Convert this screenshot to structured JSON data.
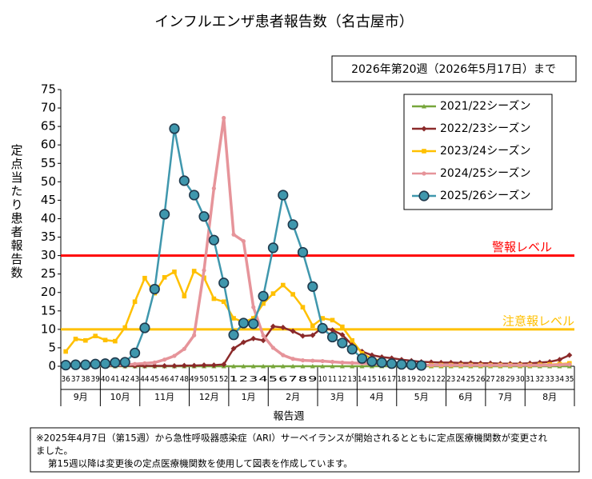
{
  "chart_data": {
    "type": "line",
    "title": "インフルエンザ患者報告数（名古屋市）",
    "subtitle": "2026年第20週（2026年5月17日）まで",
    "ylabel": "定点当たり患者報告数",
    "xlabel": "報告週",
    "note": [
      "※2025年4月7日（第15週）から急性呼吸器感染症（ARI）サーベイランスが開始されるとともに定点医療機関数が変更され",
      "ました。",
      "第15週以降は変更後の定点医療機関数を使用して図表を作成しています。"
    ],
    "categories": [
      "36",
      "37",
      "38",
      "39",
      "40",
      "41",
      "42",
      "43",
      "44",
      "45",
      "46",
      "47",
      "48",
      "49",
      "50",
      "51",
      "52",
      "1",
      "2",
      "3",
      "4",
      "5",
      "6",
      "7",
      "8",
      "9",
      "10",
      "11",
      "12",
      "13",
      "14",
      "15",
      "16",
      "17",
      "18",
      "19",
      "20",
      "21",
      "22",
      "23",
      "24",
      "25",
      "26",
      "27",
      "28",
      "29",
      "30",
      "31",
      "32",
      "33",
      "34",
      "35"
    ],
    "category_months": [
      "9月",
      "9月",
      "9月",
      "9月",
      "10月",
      "10月",
      "10月",
      "10月",
      "11月",
      "11月",
      "11月",
      "11月",
      "11月",
      "12月",
      "12月",
      "12月",
      "12月",
      "1月",
      "1月",
      "1月",
      "1月",
      "2月",
      "2月",
      "2月",
      "2月",
      "2月",
      "3月",
      "3月",
      "3月",
      "3月",
      "4月",
      "4月",
      "4月",
      "4月",
      "5月",
      "5月",
      "5月",
      "5月",
      "5月",
      "6月",
      "6月",
      "6月",
      "6月",
      "7月",
      "7月",
      "7月",
      "7月",
      "8月",
      "8月",
      "8月",
      "8月",
      "8月"
    ],
    "ylim": [
      0,
      75
    ],
    "yticks": [
      0,
      5,
      10,
      15,
      20,
      25,
      30,
      35,
      40,
      45,
      50,
      55,
      60,
      65,
      70,
      75
    ],
    "legend": "upper right",
    "reference_lines": [
      {
        "label": "警報レベル",
        "value": 30,
        "color": "#ff0000"
      },
      {
        "label": "注意報レベル",
        "value": 10,
        "color": "#ffc000"
      }
    ],
    "series": [
      {
        "name": "2021/22シーズン",
        "color": "#77a63b",
        "marker": "triangle",
        "values": [
          0,
          0,
          0,
          0,
          0,
          0,
          0,
          0,
          0,
          0,
          0,
          0,
          0,
          0,
          0,
          0,
          0,
          0,
          0,
          0,
          0,
          0,
          0,
          0,
          0,
          0,
          0,
          0,
          0,
          0,
          0,
          0,
          0,
          0,
          0,
          0,
          0,
          0,
          0,
          0,
          0,
          0,
          0,
          0,
          0,
          0,
          0,
          0,
          0,
          0,
          0,
          0
        ]
      },
      {
        "name": "2022/23シーズン",
        "color": "#8b2a2a",
        "marker": "diamond",
        "values": [
          0.1,
          0.1,
          0.1,
          0.1,
          0.1,
          0.1,
          0.1,
          0.1,
          0.1,
          0.1,
          0.1,
          0.1,
          0.2,
          0.2,
          0.3,
          0.3,
          0.5,
          4.8,
          6.5,
          7.5,
          7.0,
          10.8,
          10.5,
          9.5,
          8.2,
          8.4,
          10.5,
          9.8,
          8.5,
          5.8,
          4.0,
          3.0,
          2.5,
          2.2,
          1.8,
          1.5,
          1.2,
          1.1,
          1.0,
          1.0,
          0.9,
          0.9,
          0.8,
          0.8,
          0.7,
          0.7,
          0.7,
          0.8,
          1.0,
          1.2,
          1.8,
          3.0
        ]
      },
      {
        "name": "2023/24シーズン",
        "color": "#ffc000",
        "marker": "square",
        "values": [
          4.0,
          7.4,
          7.0,
          8.2,
          7.1,
          6.8,
          10.5,
          17.5,
          23.9,
          19.8,
          24.1,
          25.6,
          19.0,
          25.8,
          24.0,
          18.3,
          17.5,
          13.0,
          12.0,
          13.0,
          17.0,
          19.7,
          22.0,
          19.5,
          16.0,
          11.0,
          13.0,
          12.5,
          10.7,
          7.0,
          3.5,
          2.0,
          1.5,
          1.0,
          0.8,
          0.5,
          0.4,
          0.3,
          0.3,
          0.3,
          0.3,
          0.3,
          0.3,
          0.3,
          0.3,
          0.3,
          0.3,
          0.3,
          0.4,
          0.5,
          0.6,
          0.8
        ]
      },
      {
        "name": "2024/25シーズン",
        "color": "#e6949a",
        "marker": "circle",
        "values": [
          0.1,
          0.1,
          0.2,
          0.2,
          0.3,
          0.3,
          0.4,
          0.6,
          0.8,
          1.0,
          1.8,
          2.8,
          4.7,
          8.4,
          26.0,
          48.2,
          67.3,
          35.7,
          33.9,
          16.0,
          8.3,
          5.0,
          3.0,
          2.0,
          1.6,
          1.5,
          1.4,
          1.2,
          1.0,
          0.9,
          0.8,
          0.6,
          0.5,
          0.5,
          0.4,
          0.3,
          0.3,
          0.3,
          0.3,
          0.3,
          0.3,
          0.3,
          0.3,
          0.3,
          0.3,
          0.3,
          0.3,
          0.3,
          0.3,
          0.3,
          0.4,
          0.5
        ]
      },
      {
        "name": "2025/26シーズン",
        "color": "#3f97ad",
        "marker": "big-circle",
        "values": [
          0.3,
          0.4,
          0.4,
          0.6,
          0.7,
          1.0,
          1.1,
          3.6,
          10.4,
          20.9,
          41.2,
          64.4,
          50.3,
          46.4,
          40.6,
          34.2,
          22.6,
          8.5,
          11.7,
          11.5,
          19.0,
          32.1,
          46.4,
          38.4,
          30.9,
          21.6,
          10.3,
          7.9,
          6.3,
          4.6,
          2.1,
          1.3,
          1.0,
          0.7,
          0.5,
          0.4,
          0.2,
          null,
          null,
          null,
          null,
          null,
          null,
          null,
          null,
          null,
          null,
          null,
          null,
          null,
          null,
          null
        ]
      }
    ]
  }
}
